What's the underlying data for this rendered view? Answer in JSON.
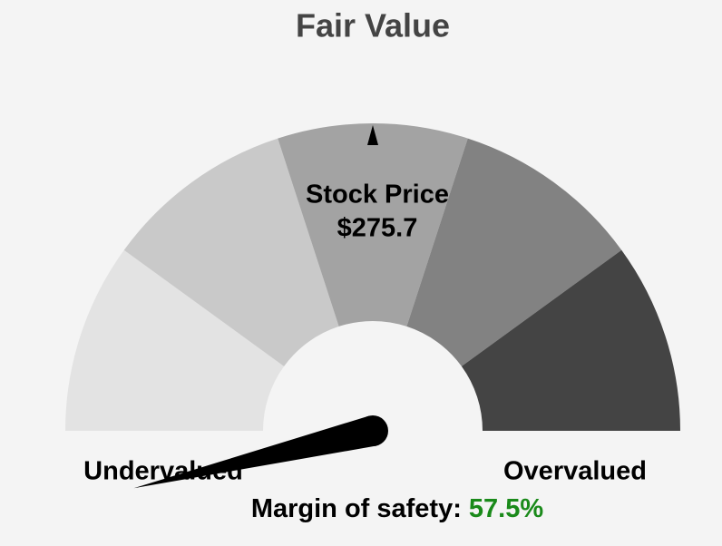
{
  "chart_data": {
    "type": "gauge",
    "title": "Fair Value",
    "center_label": "Stock Price",
    "price_label": "$275.7",
    "left_label": "Undervalued",
    "right_label": "Overvalued",
    "needle_label": "Margin of safety:",
    "needle": {
      "value": 57.5,
      "label": "57.5%"
    },
    "range": [
      50,
      -50
    ],
    "segment_colors": [
      "#e3e3e3",
      "#c9c9c9",
      "#a3a3a3",
      "#828282",
      "#444444"
    ],
    "needle_color": "#000000",
    "value_color": "#1a8a1a"
  }
}
